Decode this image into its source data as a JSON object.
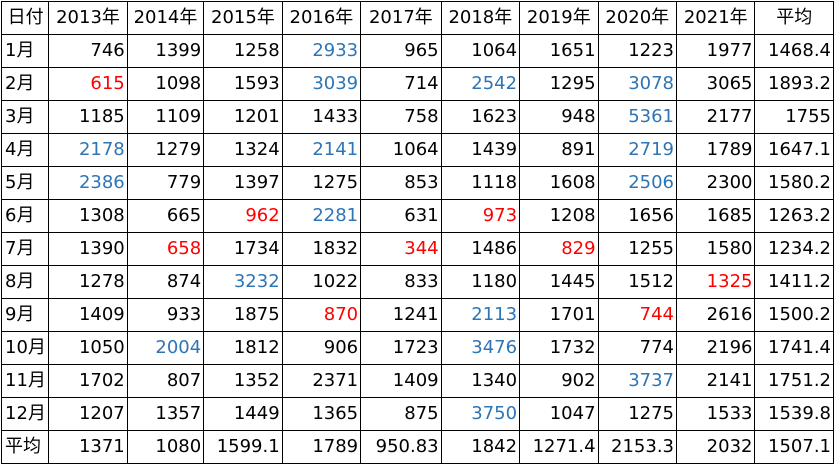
{
  "table": {
    "corner_label": "日付",
    "headers": [
      "2013年",
      "2014年",
      "2015年",
      "2016年",
      "2017年",
      "2018年",
      "2019年",
      "2020年",
      "2021年",
      "平均"
    ],
    "rows": [
      {
        "label": "1月",
        "values": [
          "746",
          "1399",
          "1258",
          "2933",
          "965",
          "1064",
          "1651",
          "1223",
          "1977",
          "1468.4"
        ],
        "colors": [
          "",
          "",
          "",
          "blue",
          "",
          "",
          "",
          "",
          "",
          ""
        ]
      },
      {
        "label": "2月",
        "values": [
          "615",
          "1098",
          "1593",
          "3039",
          "714",
          "2542",
          "1295",
          "3078",
          "3065",
          "1893.2"
        ],
        "colors": [
          "red",
          "",
          "",
          "blue",
          "",
          "blue",
          "",
          "blue",
          "",
          ""
        ]
      },
      {
        "label": "3月",
        "values": [
          "1185",
          "1109",
          "1201",
          "1433",
          "758",
          "1623",
          "948",
          "5361",
          "2177",
          "1755"
        ],
        "colors": [
          "",
          "",
          "",
          "",
          "",
          "",
          "",
          "blue",
          "",
          ""
        ]
      },
      {
        "label": "4月",
        "values": [
          "2178",
          "1279",
          "1324",
          "2141",
          "1064",
          "1439",
          "891",
          "2719",
          "1789",
          "1647.1"
        ],
        "colors": [
          "blue",
          "",
          "",
          "blue",
          "",
          "",
          "",
          "blue",
          "",
          ""
        ]
      },
      {
        "label": "5月",
        "values": [
          "2386",
          "779",
          "1397",
          "1275",
          "853",
          "1118",
          "1608",
          "2506",
          "2300",
          "1580.2"
        ],
        "colors": [
          "blue",
          "",
          "",
          "",
          "",
          "",
          "",
          "blue",
          "",
          ""
        ]
      },
      {
        "label": "6月",
        "values": [
          "1308",
          "665",
          "962",
          "2281",
          "631",
          "973",
          "1208",
          "1656",
          "1685",
          "1263.2"
        ],
        "colors": [
          "",
          "",
          "red",
          "blue",
          "",
          "red",
          "",
          "",
          "",
          ""
        ]
      },
      {
        "label": "7月",
        "values": [
          "1390",
          "658",
          "1734",
          "1832",
          "344",
          "1486",
          "829",
          "1255",
          "1580",
          "1234.2"
        ],
        "colors": [
          "",
          "red",
          "",
          "",
          "red",
          "",
          "red",
          "",
          "",
          ""
        ]
      },
      {
        "label": "8月",
        "values": [
          "1278",
          "874",
          "3232",
          "1022",
          "833",
          "1180",
          "1445",
          "1512",
          "1325",
          "1411.2"
        ],
        "colors": [
          "",
          "",
          "blue",
          "",
          "",
          "",
          "",
          "",
          "red",
          ""
        ]
      },
      {
        "label": "9月",
        "values": [
          "1409",
          "933",
          "1875",
          "870",
          "1241",
          "2113",
          "1701",
          "744",
          "2616",
          "1500.2"
        ],
        "colors": [
          "",
          "",
          "",
          "red",
          "",
          "blue",
          "",
          "red",
          "",
          ""
        ]
      },
      {
        "label": "10月",
        "values": [
          "1050",
          "2004",
          "1812",
          "906",
          "1723",
          "3476",
          "1732",
          "774",
          "2196",
          "1741.4"
        ],
        "colors": [
          "",
          "blue",
          "",
          "",
          "",
          "blue",
          "",
          "",
          "",
          ""
        ]
      },
      {
        "label": "11月",
        "values": [
          "1702",
          "807",
          "1352",
          "2371",
          "1409",
          "1340",
          "902",
          "3737",
          "2141",
          "1751.2"
        ],
        "colors": [
          "",
          "",
          "",
          "",
          "",
          "",
          "",
          "blue",
          "",
          ""
        ]
      },
      {
        "label": "12月",
        "values": [
          "1207",
          "1357",
          "1449",
          "1365",
          "875",
          "3750",
          "1047",
          "1275",
          "1533",
          "1539.8"
        ],
        "colors": [
          "",
          "",
          "",
          "",
          "",
          "blue",
          "",
          "",
          "",
          ""
        ]
      },
      {
        "label": "平均",
        "values": [
          "1371",
          "1080",
          "1599.1",
          "1789",
          "950.83",
          "1842",
          "1271.4",
          "2153.3",
          "2032",
          "1507.1"
        ],
        "colors": [
          "",
          "",
          "",
          "",
          "",
          "",
          "",
          "",
          "",
          ""
        ]
      }
    ]
  },
  "colors": {
    "high": "#2e75b6",
    "low": "#ff0000",
    "text": "#000000",
    "border": "#000000"
  }
}
